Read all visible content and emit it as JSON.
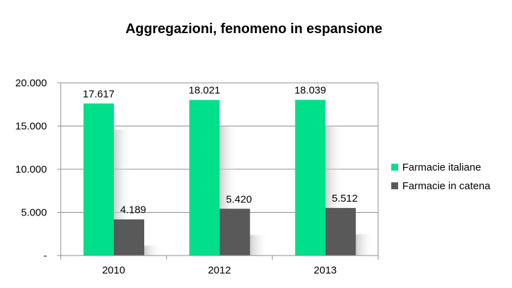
{
  "chart_data": {
    "type": "bar",
    "title": "Aggregazioni, fenomeno in espansione",
    "categories": [
      "2010",
      "2012",
      "2013"
    ],
    "series": [
      {
        "name": "Farmacie italiane",
        "values": [
          17617,
          18021,
          18039
        ],
        "labels": [
          "17.617",
          "18.021",
          "18.039"
        ],
        "color": "#00e08a"
      },
      {
        "name": "Farmacie in catena",
        "values": [
          4189,
          5420,
          5512
        ],
        "labels": [
          "4.189",
          "5.420",
          "5.512"
        ],
        "color": "#595959"
      }
    ],
    "yticks": [
      {
        "value": 0,
        "label": "-"
      },
      {
        "value": 5000,
        "label": "5.000"
      },
      {
        "value": 10000,
        "label": "10.000"
      },
      {
        "value": 15000,
        "label": "15.000"
      },
      {
        "value": 20000,
        "label": "20.000"
      }
    ],
    "ylim": [
      0,
      20000
    ],
    "grid": true,
    "legend": "right"
  }
}
